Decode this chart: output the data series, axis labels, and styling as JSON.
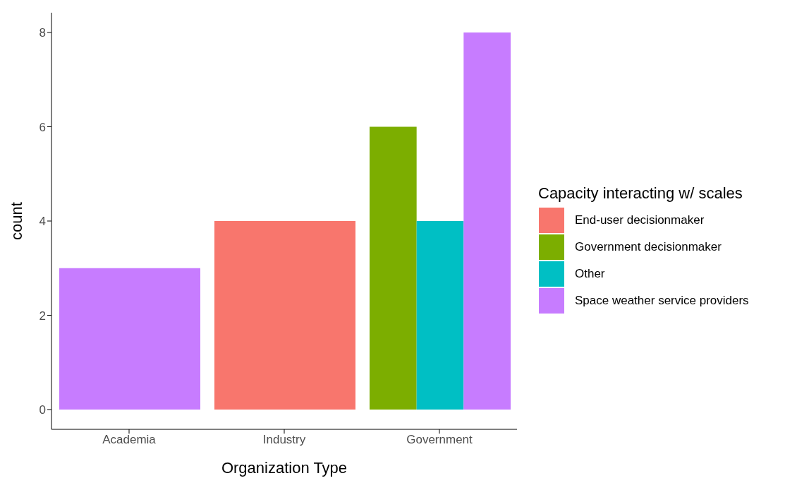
{
  "chart_data": {
    "type": "bar",
    "xlabel": "Organization Type",
    "ylabel": "count",
    "legend_title": "Capacity interacting w/ scales",
    "categories": [
      "Academia",
      "Industry",
      "Government"
    ],
    "series": [
      {
        "name": "End-user decisionmaker",
        "color": "#f8766d",
        "values": [
          null,
          4,
          null
        ]
      },
      {
        "name": "Government decisionmaker",
        "color": "#7cae00",
        "values": [
          null,
          null,
          6
        ]
      },
      {
        "name": "Other",
        "color": "#00bfc4",
        "values": [
          null,
          null,
          4
        ]
      },
      {
        "name": "Space weather service providers",
        "color": "#c77cff",
        "values": [
          3,
          null,
          8
        ]
      }
    ],
    "ylim": [
      -0.42,
      8.42
    ],
    "yticks": [
      0,
      2,
      4,
      6,
      8
    ],
    "grid": false,
    "legend": "right"
  }
}
